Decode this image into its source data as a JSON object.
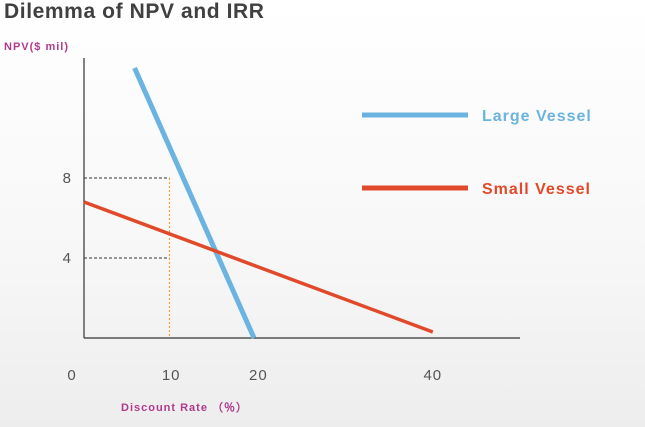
{
  "title": "Dilemma of NPV and IRR",
  "chart_data": {
    "type": "line",
    "xlabel": "Discount Rate （％）",
    "ylabel": "NPV($ mil)",
    "x_ticks": [
      0,
      10,
      20,
      40
    ],
    "y_ticks": [
      8,
      4
    ],
    "xlim": [
      0,
      50
    ],
    "ylim": [
      0,
      14
    ],
    "grid": false,
    "legend_position": "right",
    "series": [
      {
        "name": "Large Vessel",
        "color": "#6bb3e0",
        "points": [
          [
            5.8,
            13.5
          ],
          [
            19.5,
            0
          ]
        ]
      },
      {
        "name": "Small Vessel",
        "color": "#e04a2a",
        "points": [
          [
            0,
            6.8
          ],
          [
            40,
            0.3
          ]
        ]
      }
    ],
    "reference_lines": [
      {
        "type": "horizontal",
        "y": 8,
        "x_to": 9.8,
        "style": "dashed",
        "color": "#333333"
      },
      {
        "type": "horizontal",
        "y": 4,
        "x_to": 9.8,
        "style": "dashed",
        "color": "#333333"
      },
      {
        "type": "vertical",
        "x": 9.8,
        "y_to": 8,
        "style": "dotted",
        "color": "#f0a040"
      }
    ]
  }
}
